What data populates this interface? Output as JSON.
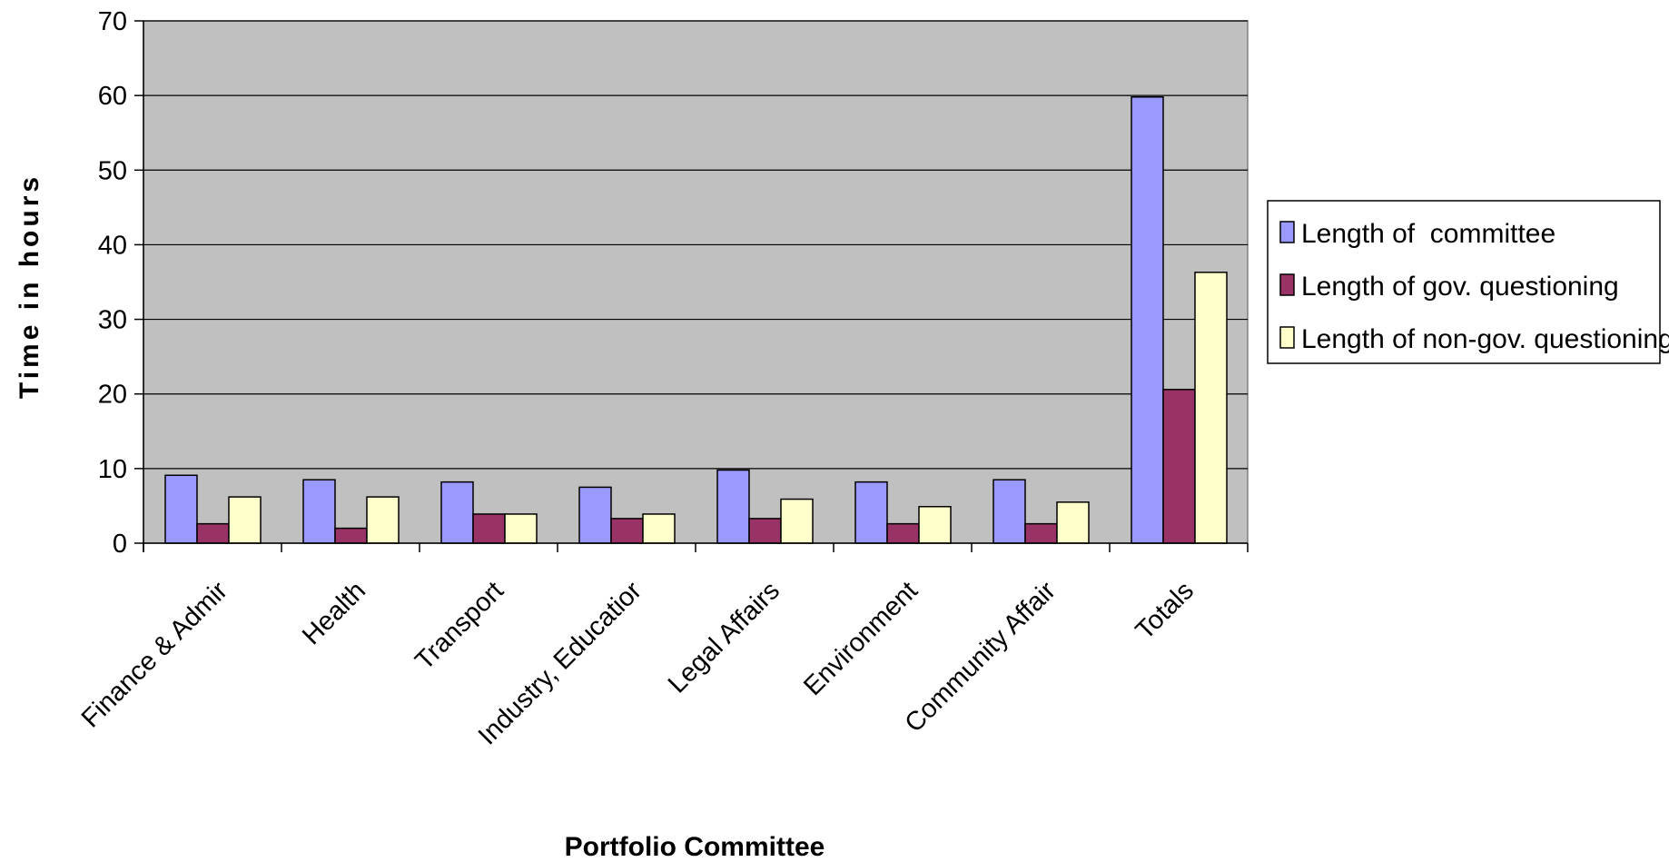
{
  "chart_data": {
    "type": "bar",
    "title": "",
    "xlabel": "Portfolio Committee",
    "ylabel": "Time in hours",
    "ylim": [
      0,
      70
    ],
    "yticks": [
      0,
      10,
      20,
      30,
      40,
      50,
      60,
      70
    ],
    "grid": true,
    "legend_position": "right",
    "categories": [
      "Finance & Admin",
      "Health",
      "Transport",
      "Industry, Education",
      "Legal Affairs",
      "Environment",
      "Community Affairs",
      "Totals"
    ],
    "category_labels_displayed": [
      "Finance & Admir",
      "Health",
      "Transport",
      "Industry, Educatior",
      "Legal Affairs",
      "Environment",
      "Community Affair",
      "Totals"
    ],
    "series": [
      {
        "name": "Length of  committee",
        "color": "#9999ff",
        "values": [
          9.1,
          8.5,
          8.2,
          7.5,
          9.8,
          8.2,
          8.5,
          59.8
        ]
      },
      {
        "name": "Length of gov. questioning",
        "color": "#993366",
        "values": [
          2.6,
          2.0,
          3.9,
          3.3,
          3.3,
          2.6,
          2.6,
          20.6
        ]
      },
      {
        "name": "Length of non-gov. questioning",
        "color": "#ffffcc",
        "values": [
          6.2,
          6.2,
          3.9,
          3.9,
          5.9,
          4.9,
          5.5,
          36.3
        ]
      }
    ],
    "colors": {
      "plot_background": "#c0c0c0",
      "gridline": "#000000",
      "bar_stroke": "#000000"
    }
  }
}
